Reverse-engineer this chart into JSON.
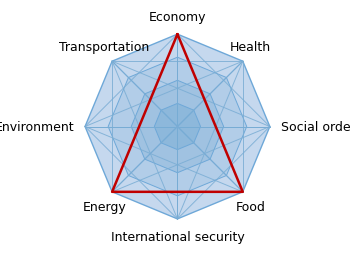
{
  "labels": [
    "Economy",
    "Health",
    "Social order",
    "Food",
    "International security",
    "Energy",
    "Environment",
    "Transportation"
  ],
  "n_rings": 4,
  "outer_fill_color": "#c5d8ee",
  "inner_fill_color": "#7aadd4",
  "edge_color": "#6ea8d8",
  "line_color": "#7aadd4",
  "red_triangle_indices": [
    0,
    3,
    5
  ],
  "red_color": "#c00000",
  "background_color": "#ffffff",
  "label_fontsize": 9,
  "label_color": "#000000",
  "figwidth": 3.5,
  "figheight": 2.55,
  "dpi": 100,
  "R": 1.0,
  "xlim": [
    -1.55,
    1.55
  ],
  "ylim": [
    -1.35,
    1.35
  ]
}
